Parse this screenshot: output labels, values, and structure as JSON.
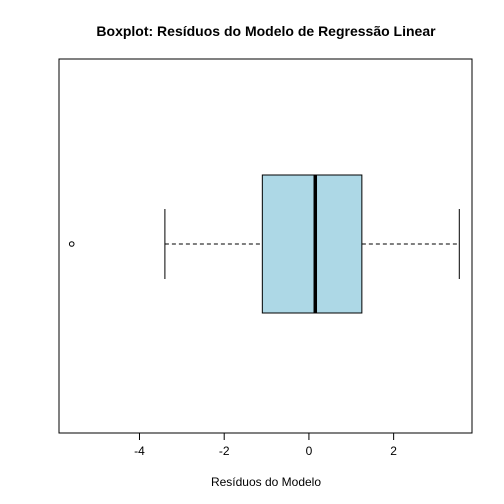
{
  "chart_data": {
    "type": "boxplot",
    "orientation": "horizontal",
    "title": "Boxplot: Resíduos do Modelo de Regressão Linear",
    "xlabel": "Resíduos do Modelo",
    "ylabel": "",
    "xlim": [
      -5.9,
      3.85
    ],
    "x_ticks": [
      -4,
      -2,
      0,
      2
    ],
    "x_tick_labels": [
      "-4",
      "-2",
      "0",
      "2"
    ],
    "grid": false,
    "box": {
      "whisker_low": -3.4,
      "q1": -1.1,
      "median": 0.15,
      "q3": 1.25,
      "whisker_high": 3.55
    },
    "outliers": [
      -5.6
    ],
    "colors": {
      "box_fill": "#add8e6",
      "stroke": "#000000"
    }
  }
}
